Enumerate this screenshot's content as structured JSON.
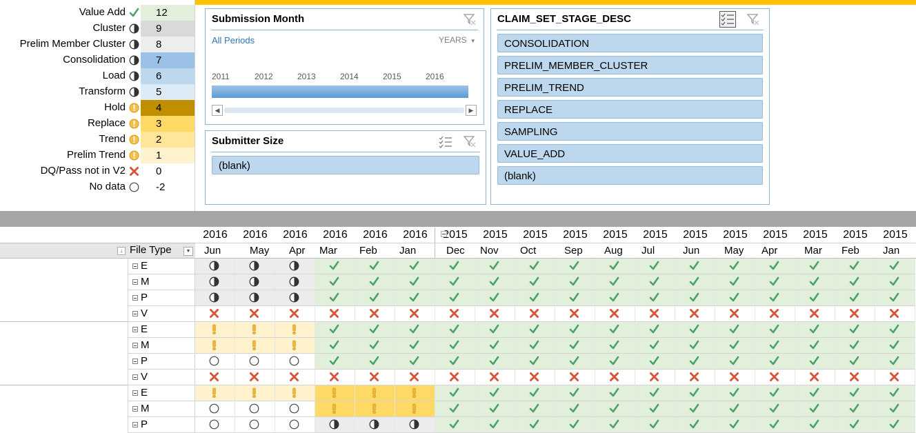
{
  "colors": {
    "value_add": "#E2EFDA",
    "cluster": "#D9D9D9",
    "prelim_member_cluster": "#EDEDED",
    "consolidation": "#9BC2E6",
    "load": "#BDD7EE",
    "transform": "#DDEBF7",
    "hold": "#BF8F00",
    "replace": "#FFD966",
    "trend": "#FFE699",
    "prelim_trend": "#FFF2CC",
    "accent": "#FFC000",
    "chip": "#BDD7EE"
  },
  "legend": [
    {
      "label": "Value Add",
      "value": "12",
      "icon": "check-icon",
      "color": "#E2EFDA"
    },
    {
      "label": "Cluster",
      "value": "9",
      "icon": "half-circle-icon",
      "color": "#D9D9D9"
    },
    {
      "label": "Prelim  Member Cluster",
      "value": "8",
      "icon": "half-circle-icon",
      "color": "#EDEDED"
    },
    {
      "label": "Consolidation",
      "value": "7",
      "icon": "half-circle-icon",
      "color": "#9BC2E6"
    },
    {
      "label": "Load",
      "value": "6",
      "icon": "half-circle-icon",
      "color": "#BDD7EE"
    },
    {
      "label": "Transform",
      "value": "5",
      "icon": "half-circle-icon",
      "color": "#DDEBF7"
    },
    {
      "label": "Hold",
      "value": "4",
      "icon": "warning-circle-icon",
      "color": "#BF8F00"
    },
    {
      "label": "Replace",
      "value": "3",
      "icon": "warning-circle-icon",
      "color": "#FFD966"
    },
    {
      "label": "Trend",
      "value": "2",
      "icon": "warning-circle-icon",
      "color": "#FFE699"
    },
    {
      "label": "Prelim Trend",
      "value": "1",
      "icon": "warning-circle-icon",
      "color": "#FFF2CC"
    },
    {
      "label": "DQ/Pass not in V2",
      "value": "0",
      "icon": "x-icon",
      "color": "#FFFFFF"
    },
    {
      "label": "No data",
      "value": "-2",
      "icon": "empty-circle-icon",
      "color": "#FFFFFF"
    }
  ],
  "timeline": {
    "title": "Submission Month",
    "periods_label": "All Periods",
    "level_label": "YEARS",
    "years": [
      "2011",
      "2012",
      "2013",
      "2014",
      "2015",
      "2016"
    ]
  },
  "submitter_size": {
    "title": "Submitter Size",
    "items": [
      "(blank)"
    ]
  },
  "stage_slicer": {
    "title": "CLAIM_SET_STAGE_DESC",
    "items": [
      "CONSOLIDATION",
      "PRELIM_MEMBER_CLUSTER",
      "PRELIM_TREND",
      "REPLACE",
      "SAMPLING",
      "VALUE_ADD",
      "(blank)"
    ]
  },
  "pivot": {
    "row_header": "File Type",
    "years": [
      "2016",
      "2016",
      "2016",
      "2016",
      "2016",
      "2016",
      "2015",
      "2015",
      "2015",
      "2015",
      "2015",
      "2015",
      "2015",
      "2015",
      "2015",
      "2015",
      "2015",
      "2015"
    ],
    "months": [
      "Jun",
      "May",
      "Apr",
      "Mar",
      "Feb",
      "Jan",
      "Dec",
      "Nov",
      "Oct",
      "Sep",
      "Aug",
      "Jul",
      "Jun",
      "May",
      "Apr",
      "Mar",
      "Feb",
      "Jan"
    ],
    "rows": [
      {
        "file_type": "E",
        "cells": "HHHCCCCCCCCCCCCCCC",
        "fills": "GGGVVVVVVVVVVVVVVV"
      },
      {
        "file_type": "M",
        "cells": "HHHCCCCCCCCCCCCCCC",
        "fills": "GGGVVVVVVVVVVVVVVV"
      },
      {
        "file_type": "P",
        "cells": "HHHCCCCCCCCCCCCCCC",
        "fills": "GGGVVVVVVVVVVVVVVV"
      },
      {
        "file_type": "V",
        "cells": "XXXXXXXXXXXXXXXXXX",
        "fills": "WWWWWWWWWWWWWWWWWW"
      },
      {
        "file_type": "E",
        "cells": "!!!CCCCCCCCCCCCCCC",
        "fills": "PPPVVVVVVVVVVVVVVV"
      },
      {
        "file_type": "M",
        "cells": "!!!CCCCCCCCCCCCCCC",
        "fills": "PPPVVVVVVVVVVVVVVV"
      },
      {
        "file_type": "P",
        "cells": "OOOCCCCCCCCCCCCCCC",
        "fills": "WWWVVVVVVVVVVVVVVV"
      },
      {
        "file_type": "V",
        "cells": "XXXXXXXXXXXXXXXXXX",
        "fills": "WWWWWWWWWWWWWWWWWW"
      },
      {
        "file_type": "E",
        "cells": "!!!!!!CCCCCCCCCCCC",
        "fills": "PPPRRRVVVVVVVVVVVV"
      },
      {
        "file_type": "M",
        "cells": "OOO!!!CCCCCCCCCCCC",
        "fills": "WWWRRRVVVVVVVVVVVV"
      },
      {
        "file_type": "P",
        "cells": "OOOHHHCCCCCCCCCCCC",
        "fills": "WWWGGGVVVVVVVVVVVV"
      }
    ]
  }
}
